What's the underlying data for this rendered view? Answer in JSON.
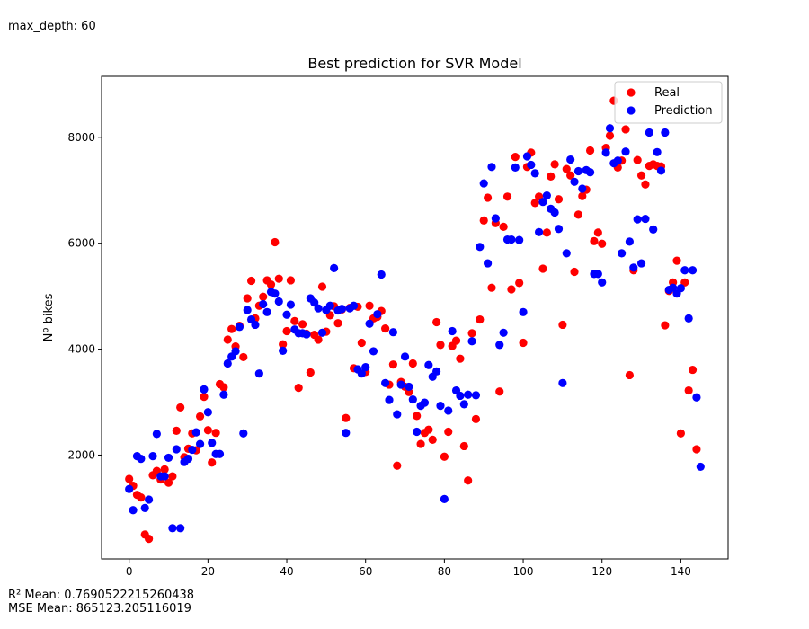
{
  "figure": {
    "top_note": "max_depth: 60",
    "r2_text": "R² Mean: 0.7690522215260438",
    "mse_text": "MSE Mean: 865123.205116019"
  },
  "chart_data": {
    "type": "scatter",
    "title": "Best prediction for SVR Model",
    "xlabel": "",
    "ylabel": "Nº bikes",
    "xlim": [
      -7,
      152
    ],
    "ylim": [
      40,
      9150
    ],
    "xticks": [
      0,
      20,
      40,
      60,
      80,
      100,
      120,
      140
    ],
    "yticks": [
      2000,
      4000,
      6000,
      8000
    ],
    "grid": false,
    "legend_position": "top-right",
    "series": [
      {
        "name": "Real",
        "color": "#ff0000",
        "x": [
          0,
          1,
          2,
          3,
          4,
          5,
          6,
          7,
          8,
          9,
          10,
          11,
          12,
          13,
          14,
          15,
          16,
          17,
          18,
          19,
          20,
          21,
          22,
          23,
          24,
          25,
          26,
          27,
          28,
          29,
          30,
          31,
          32,
          33,
          34,
          35,
          36,
          37,
          38,
          39,
          40,
          41,
          42,
          43,
          44,
          45,
          46,
          47,
          48,
          49,
          50,
          51,
          52,
          53,
          54,
          55,
          56,
          57,
          58,
          59,
          60,
          61,
          62,
          63,
          64,
          65,
          66,
          67,
          68,
          69,
          70,
          71,
          72,
          73,
          74,
          75,
          76,
          77,
          78,
          79,
          80,
          81,
          82,
          83,
          84,
          85,
          86,
          87,
          88,
          89,
          90,
          91,
          92,
          93,
          94,
          95,
          96,
          97,
          98,
          99,
          100,
          101,
          102,
          103,
          104,
          105,
          106,
          107,
          108,
          109,
          110,
          111,
          112,
          113,
          114,
          115,
          116,
          117,
          118,
          119,
          120,
          121,
          122,
          123,
          124,
          125,
          126,
          127,
          128,
          129,
          130,
          131,
          132,
          133,
          134,
          135,
          136,
          137,
          138,
          139,
          140,
          141,
          142,
          143,
          144
        ],
        "y": [
          1550,
          1420,
          1250,
          1200,
          500,
          420,
          1620,
          1700,
          1540,
          1730,
          1480,
          1600,
          2460,
          2900,
          1960,
          2120,
          2410,
          2090,
          2730,
          3100,
          2470,
          1860,
          2420,
          3340,
          3280,
          4180,
          4380,
          4050,
          4440,
          3850,
          4960,
          5290,
          4580,
          4820,
          4990,
          5300,
          5220,
          6020,
          5330,
          4090,
          4340,
          5300,
          4530,
          3270,
          4470,
          4290,
          3560,
          4270,
          4180,
          5180,
          4330,
          4640,
          4810,
          4490,
          4750,
          2700,
          4780,
          3640,
          4800,
          4120,
          3570,
          4820,
          4580,
          4610,
          4720,
          4390,
          3330,
          3710,
          1800,
          3380,
          3290,
          3190,
          3730,
          2740,
          2210,
          2420,
          2480,
          2290,
          4510,
          4080,
          1970,
          2440,
          4060,
          4160,
          3820,
          2170,
          1520,
          4300,
          2680,
          4560,
          6430,
          6860,
          5160,
          6380,
          3200,
          6310,
          6880,
          5130,
          7630,
          5250,
          4120,
          7440,
          7710,
          6760,
          6880,
          5520,
          6200,
          7260,
          7490,
          6830,
          4460,
          7400,
          7280,
          5460,
          6540,
          6890,
          7010,
          7750,
          6040,
          6200,
          5990,
          7800,
          8030,
          8690,
          7430,
          7560,
          8150,
          3510,
          5490,
          7570,
          7280,
          7110,
          7460,
          7490,
          7460,
          7450,
          4450,
          5100,
          5260,
          5670,
          2410,
          5260,
          3220,
          3610,
          2110
        ]
      },
      {
        "name": "Prediction",
        "color": "#0000ff",
        "x": [
          0,
          1,
          2,
          3,
          4,
          5,
          6,
          7,
          8,
          9,
          10,
          11,
          12,
          13,
          14,
          15,
          16,
          17,
          18,
          19,
          20,
          21,
          22,
          23,
          24,
          25,
          26,
          27,
          28,
          29,
          30,
          31,
          32,
          33,
          34,
          35,
          36,
          37,
          38,
          39,
          40,
          41,
          42,
          43,
          44,
          45,
          46,
          47,
          48,
          49,
          50,
          51,
          52,
          53,
          54,
          55,
          56,
          57,
          58,
          59,
          60,
          61,
          62,
          63,
          64,
          65,
          66,
          67,
          68,
          69,
          70,
          71,
          72,
          73,
          74,
          75,
          76,
          77,
          78,
          79,
          80,
          81,
          82,
          83,
          84,
          85,
          86,
          87,
          88,
          89,
          90,
          91,
          92,
          93,
          94,
          95,
          96,
          97,
          98,
          99,
          100,
          101,
          102,
          103,
          104,
          105,
          106,
          107,
          108,
          109,
          110,
          111,
          112,
          113,
          114,
          115,
          116,
          117,
          118,
          119,
          120,
          121,
          122,
          123,
          124,
          125,
          126,
          127,
          128,
          129,
          130,
          131,
          132,
          133,
          134,
          135,
          136,
          137,
          138,
          139,
          140,
          141,
          142,
          143,
          144,
          145
        ],
        "y": [
          1360,
          960,
          1980,
          1930,
          1000,
          1160,
          1980,
          2400,
          1600,
          1600,
          1950,
          620,
          2110,
          620,
          1870,
          1930,
          2100,
          2430,
          2210,
          3240,
          2810,
          2230,
          2020,
          2020,
          3140,
          3730,
          3860,
          3960,
          4420,
          2410,
          4740,
          4560,
          4460,
          3540,
          4850,
          4700,
          5080,
          5050,
          4900,
          3970,
          4650,
          4840,
          4370,
          4300,
          4300,
          4280,
          4960,
          4880,
          4770,
          4310,
          4740,
          4820,
          5530,
          4730,
          4760,
          2420,
          4770,
          4820,
          3620,
          3540,
          3660,
          4480,
          3960,
          4660,
          5410,
          3360,
          3040,
          4320,
          2770,
          3330,
          3860,
          3290,
          3050,
          2440,
          2930,
          2990,
          3700,
          3480,
          3580,
          2930,
          1170,
          2840,
          4340,
          3220,
          3120,
          2960,
          3140,
          4150,
          3130,
          5930,
          7130,
          5620,
          7440,
          6470,
          4080,
          4310,
          6070,
          6070,
          7430,
          6060,
          4700,
          7640,
          7480,
          7320,
          6210,
          6780,
          6900,
          6650,
          6580,
          6270,
          3360,
          5810,
          7580,
          7160,
          7360,
          7030,
          7380,
          7340,
          5420,
          5420,
          5260,
          7710,
          8170,
          7510,
          7560,
          5810,
          7730,
          6030,
          5540,
          6450,
          5620,
          6460,
          8090,
          6260,
          7720,
          7370,
          8090,
          5120,
          5160,
          5050,
          5150,
          5490,
          4580,
          5490,
          3090,
          1780
        ]
      }
    ]
  }
}
